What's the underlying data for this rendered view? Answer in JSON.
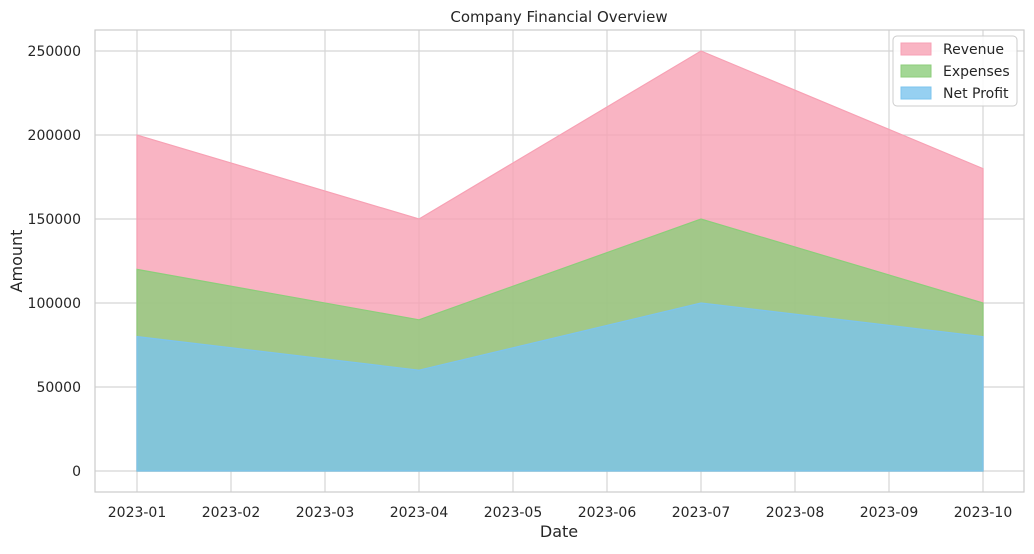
{
  "chart_data": {
    "type": "area",
    "title": "Company Financial Overview",
    "xlabel": "Date",
    "ylabel": "Amount",
    "x": [
      "2023-01",
      "2023-04",
      "2023-07",
      "2023-10"
    ],
    "x_ticks": [
      "2023-01",
      "2023-02",
      "2023-03",
      "2023-04",
      "2023-05",
      "2023-06",
      "2023-07",
      "2023-08",
      "2023-09",
      "2023-10"
    ],
    "y_ticks": [
      "0",
      "50000",
      "100000",
      "150000",
      "200000",
      "250000"
    ],
    "ylim": [
      -12500,
      262500
    ],
    "grid": true,
    "legend_position": "top-right",
    "series": [
      {
        "name": "Revenue",
        "values": [
          200000,
          150000,
          250000,
          180000
        ],
        "color": "#f7a1b4"
      },
      {
        "name": "Expenses",
        "values": [
          120000,
          90000,
          150000,
          100000
        ],
        "color": "#8ccd7a"
      },
      {
        "name": "Net Profit",
        "values": [
          80000,
          60000,
          100000,
          80000
        ],
        "color": "#7cc4ee"
      }
    ]
  }
}
